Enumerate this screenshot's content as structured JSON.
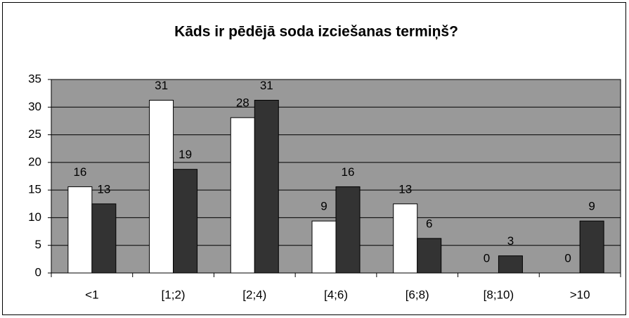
{
  "chart_data": {
    "type": "bar",
    "title": "Kāds ir pēdējā soda izciešanas termiņš?",
    "categories": [
      "<1",
      "[1;2)",
      "[2;4)",
      "[4;6)",
      "[6;8)",
      "[8;10)",
      ">10"
    ],
    "series": [
      {
        "color": "#ffffff",
        "values": [
          15.6,
          31.25,
          28.1,
          9.4,
          12.5,
          0,
          0
        ],
        "value_labels": [
          "16",
          "31",
          "28",
          "9",
          "13",
          "0",
          "0"
        ]
      },
      {
        "color": "#333333",
        "values": [
          12.5,
          18.75,
          31.25,
          15.6,
          6.25,
          3.1,
          9.4
        ],
        "value_labels": [
          "13",
          "19",
          "31",
          "16",
          "6",
          "3",
          "9"
        ]
      }
    ],
    "ylim": [
      0,
      35
    ],
    "yticks": [
      0,
      5,
      10,
      15,
      20,
      25,
      30,
      35
    ],
    "grid": true,
    "plot_background": "#999999"
  }
}
